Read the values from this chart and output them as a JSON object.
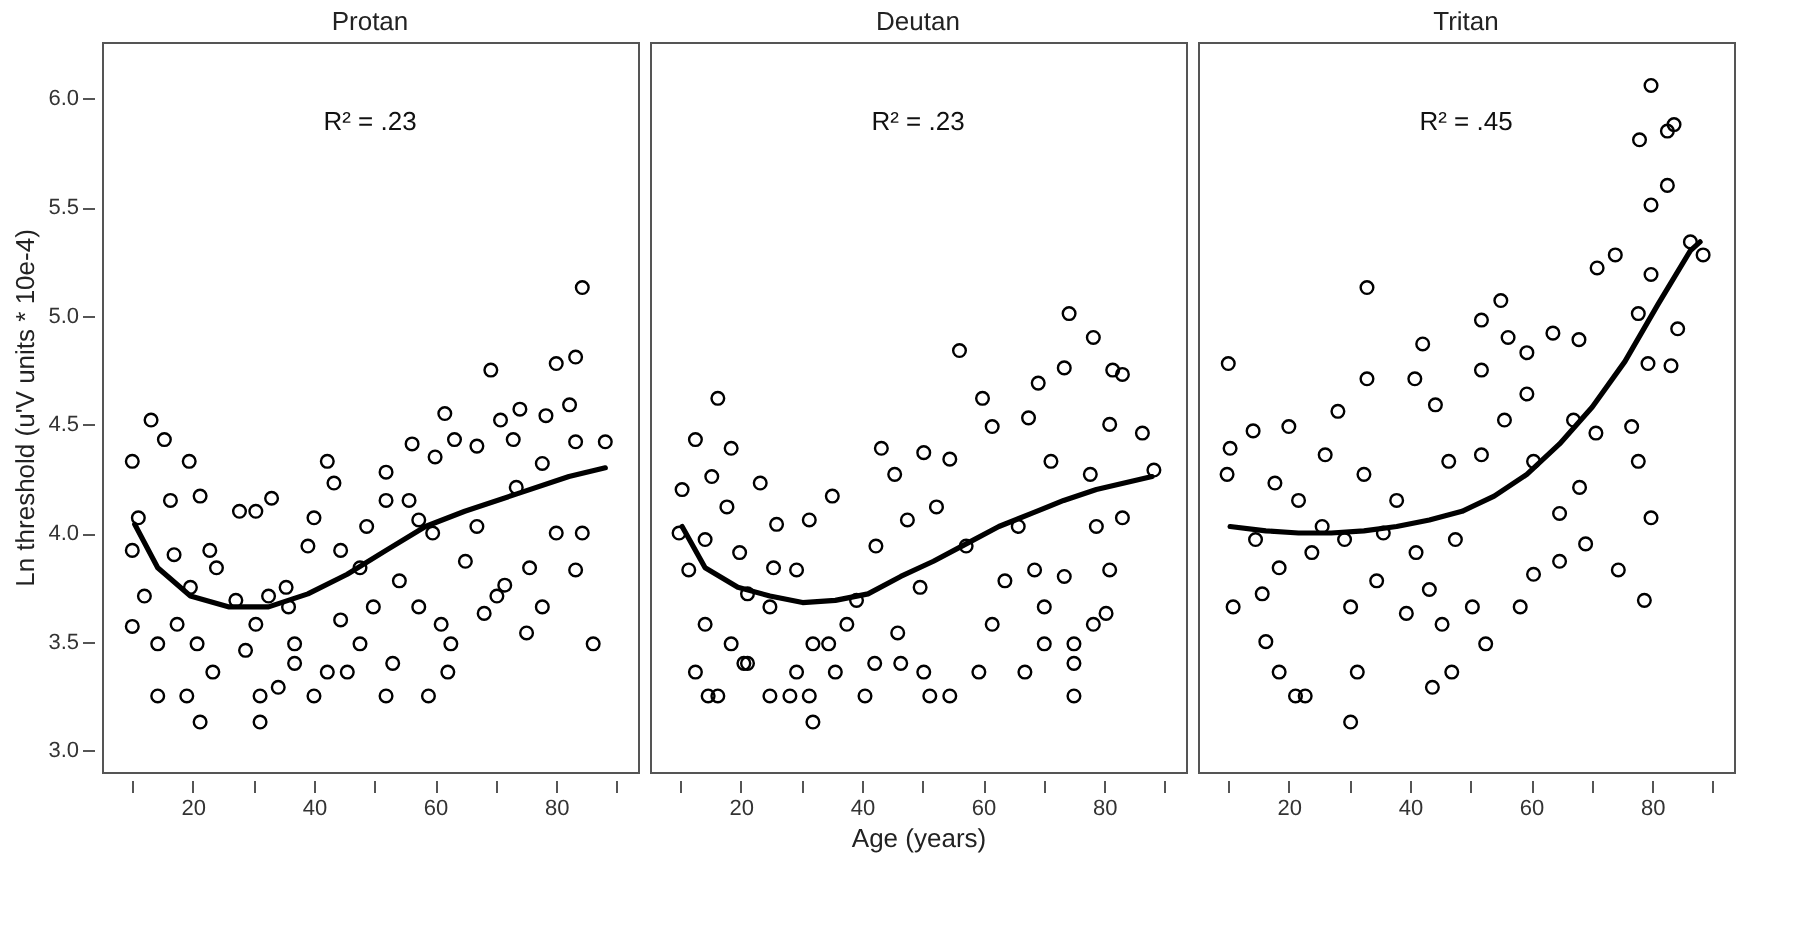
{
  "chart_data": [
    {
      "type": "scatter",
      "title": "Protan",
      "ylabel": "Ln threshold (u'V units * 10e-4)",
      "annotations": [
        "R² = .23"
      ],
      "xlim": [
        5,
        93.5
      ],
      "ylim": [
        2.9,
        6.26
      ],
      "xticks": [
        {
          "value": 10,
          "label": null
        },
        20,
        {
          "value": 30,
          "label": null
        },
        40,
        {
          "value": 50,
          "label": null
        },
        60,
        {
          "value": 70,
          "label": null
        },
        80,
        {
          "value": 90,
          "label": null
        }
      ],
      "yticks": [
        {
          "value": 3,
          "label": "3.0"
        },
        3.5,
        {
          "value": 4,
          "label": "4.0"
        },
        4.5,
        {
          "value": 5,
          "label": "5.0"
        },
        5.5,
        {
          "value": 6,
          "label": "6.0"
        }
      ],
      "series": [
        {
          "type": "scatter",
          "marker": "circle",
          "color": "#000000",
          "x": [
            10,
            10,
            10,
            13.1,
            15.3,
            19.4,
            21.2,
            16.3,
            14.2,
            19,
            21.2,
            23.3,
            11,
            12,
            14.2,
            17.4,
            20.7,
            22.8,
            27.7,
            30.4,
            33,
            28.7,
            31.1,
            31.1,
            34.1,
            30.4,
            32.5,
            36.8,
            36.8,
            40,
            40,
            42.2,
            43.3,
            42.2,
            45.5,
            44.4,
            47.6,
            48.7,
            51.9,
            53,
            51.9,
            51.9,
            56.2,
            55.7,
            58.9,
            57.3,
            60,
            61.6,
            62.1,
            62.6,
            61,
            63.2,
            66.9,
            69.2,
            70.8,
            68.1,
            70.2,
            74,
            72.9,
            78.3,
            77.7,
            75.1,
            77.7,
            80,
            83.2,
            84.3,
            82.2,
            83.2,
            84.3,
            83.2,
            88.1,
            86.1,
            80,
            71.5,
            65,
            59.6,
            54.1,
            47.6,
            39,
            35.8,
            27.1,
            19.6,
            16.9,
            23.9,
            44.4,
            66.9,
            73.4,
            75.6,
            57.3,
            49.8,
            35.4
          ],
          "values": [
            4.33,
            3.57,
            3.92,
            4.52,
            4.43,
            4.33,
            4.17,
            4.15,
            3.25,
            3.25,
            3.13,
            3.36,
            4.07,
            3.71,
            3.49,
            3.58,
            3.49,
            3.92,
            4.1,
            4.1,
            4.16,
            3.46,
            3.13,
            3.25,
            3.29,
            3.58,
            3.71,
            3.49,
            3.4,
            3.25,
            4.07,
            4.33,
            4.23,
            3.36,
            3.36,
            3.92,
            3.49,
            4.03,
            3.25,
            3.4,
            4.28,
            4.15,
            4.41,
            4.15,
            3.25,
            3.66,
            4.35,
            4.55,
            3.36,
            3.49,
            3.58,
            4.43,
            4.4,
            4.75,
            4.52,
            3.63,
            3.71,
            4.57,
            4.43,
            4.54,
            4.32,
            3.54,
            3.66,
            4.78,
            4.81,
            5.13,
            4.59,
            4.42,
            4,
            3.83,
            4.42,
            3.49,
            4,
            3.76,
            3.87,
            4,
            3.78,
            3.84,
            3.94,
            3.66,
            3.69,
            3.75,
            3.9,
            3.84,
            3.6,
            4.03,
            4.21,
            3.84,
            4.06,
            3.66,
            3.75
          ]
        },
        {
          "type": "line",
          "marker": "none",
          "color": "#000000",
          "x": [
            10.4,
            14.2,
            19.6,
            26,
            32.5,
            39,
            45.5,
            51.9,
            58.4,
            64.9,
            73.5,
            82.1,
            88.1
          ],
          "values": [
            4.04,
            3.84,
            3.71,
            3.66,
            3.66,
            3.72,
            3.81,
            3.92,
            4.03,
            4.1,
            4.18,
            4.26,
            4.3
          ]
        }
      ]
    },
    {
      "type": "scatter",
      "title": "Deutan",
      "xlabel": "Age (years)",
      "annotations": [
        "R² = .23"
      ],
      "tick_labels": "x",
      "xlim": [
        5,
        93.5
      ],
      "ylim": [
        2.9,
        6.26
      ],
      "xticks": [
        {
          "value": 10,
          "label": null
        },
        20,
        {
          "value": 30,
          "label": null
        },
        40,
        {
          "value": 50,
          "label": null
        },
        60,
        {
          "value": 70,
          "label": null
        },
        80,
        {
          "value": 90,
          "label": null
        }
      ],
      "series": [
        {
          "type": "scatter",
          "marker": "circle",
          "color": "#000000",
          "x": [
            10.3,
            9.8,
            12.5,
            16.2,
            18.4,
            15.2,
            23.2,
            11.4,
            14.1,
            12.5,
            14.6,
            16.2,
            18.4,
            21.1,
            24.8,
            28.1,
            31.9,
            31.3,
            31.9,
            29.2,
            35.6,
            34.5,
            31.3,
            25.9,
            25.4,
            29.2,
            35.1,
            40.5,
            42.1,
            43.2,
            45.4,
            46.4,
            50.2,
            51.2,
            54.5,
            56.1,
            50.2,
            54.5,
            59.9,
            61.5,
            59.3,
            61.5,
            66.9,
            67.5,
            69.1,
            73.4,
            74.2,
            78.2,
            81.4,
            83,
            86.3,
            88.2,
            80.9,
            75,
            75,
            75,
            78.2,
            80.3,
            80.9,
            83,
            70.1,
            70.1,
            68.5,
            73.4,
            71.2,
            77.7,
            63.6,
            57.2,
            52.3,
            49.6,
            47.5,
            42.3,
            39.1,
            37.5,
            24.8,
            21.1,
            19.8,
            17.7,
            14.1,
            20.5,
            45.9,
            65.8,
            78.7
          ],
          "values": [
            4.2,
            4,
            4.43,
            4.62,
            4.39,
            4.26,
            4.23,
            3.83,
            3.58,
            3.36,
            3.25,
            3.25,
            3.49,
            3.4,
            3.25,
            3.25,
            3.13,
            3.25,
            3.49,
            3.36,
            3.36,
            3.49,
            4.06,
            4.04,
            3.84,
            3.83,
            4.17,
            3.25,
            3.4,
            4.39,
            4.27,
            3.4,
            3.36,
            3.25,
            3.25,
            4.84,
            4.37,
            4.34,
            4.62,
            4.49,
            3.36,
            3.58,
            3.36,
            4.53,
            4.69,
            4.76,
            5.01,
            4.9,
            4.75,
            4.73,
            4.46,
            4.29,
            4.5,
            3.25,
            3.4,
            3.49,
            3.58,
            3.63,
            3.83,
            4.07,
            3.49,
            3.66,
            3.83,
            3.8,
            4.33,
            4.27,
            3.78,
            3.94,
            4.12,
            3.75,
            4.06,
            3.94,
            3.69,
            3.58,
            3.66,
            3.72,
            3.91,
            4.12,
            3.97,
            3.4,
            3.54,
            4.03,
            4.03
          ]
        },
        {
          "type": "line",
          "marker": "none",
          "color": "#000000",
          "x": [
            10.3,
            14.1,
            19.5,
            24.8,
            30.2,
            35.6,
            41,
            46.4,
            51.8,
            57.2,
            62.6,
            68,
            73.3,
            78.7,
            87.9
          ],
          "values": [
            4.03,
            3.84,
            3.75,
            3.71,
            3.68,
            3.69,
            3.72,
            3.8,
            3.87,
            3.95,
            4.03,
            4.09,
            4.15,
            4.2,
            4.26
          ]
        }
      ]
    },
    {
      "type": "scatter",
      "title": "Tritan",
      "annotations": [
        "R² = .45"
      ],
      "tick_labels": "x",
      "xlim": [
        5,
        93.5
      ],
      "ylim": [
        2.9,
        6.26
      ],
      "xticks": [
        {
          "value": 10,
          "label": null
        },
        20,
        {
          "value": 30,
          "label": null
        },
        40,
        {
          "value": 50,
          "label": null
        },
        60,
        {
          "value": 70,
          "label": null
        },
        80,
        {
          "value": 90,
          "label": null
        }
      ],
      "series": [
        {
          "type": "scatter",
          "marker": "circle",
          "color": "#000000",
          "x": [
            10,
            10.3,
            9.8,
            10.8,
            14.1,
            20,
            16.2,
            18.4,
            21.1,
            22.7,
            30.2,
            31.3,
            30.2,
            34.5,
            32.9,
            32.9,
            28.1,
            26,
            42.1,
            40.8,
            44.2,
            43.7,
            46.9,
            45.3,
            39.4,
            43.2,
            51.8,
            51.8,
            55,
            56.2,
            52.5,
            50.3,
            58.2,
            59.3,
            59.3,
            63.6,
            67.9,
            70.9,
            73.9,
            79.8,
            77.9,
            82.5,
            83.6,
            82.5,
            79.8,
            86.3,
            88.4,
            79.8,
            77.7,
            84.2,
            83.1,
            79.3,
            78.7,
            79.8,
            74.4,
            76.6,
            77.7,
            69,
            64.7,
            60.4,
            68,
            70.7,
            67,
            55.6,
            51.8,
            46.4,
            47.5,
            41,
            37.8,
            32.4,
            25.5,
            21.6,
            17.7,
            14.5,
            15.6,
            18.4,
            23.8,
            29.2,
            35.6,
            60.4,
            64.7
          ],
          "values": [
            4.78,
            4.39,
            4.27,
            3.66,
            4.47,
            4.49,
            3.5,
            3.36,
            3.25,
            3.25,
            3.13,
            3.36,
            3.66,
            3.78,
            5.13,
            4.71,
            4.56,
            4.36,
            4.87,
            4.71,
            4.59,
            3.29,
            3.36,
            3.58,
            3.63,
            3.74,
            4.75,
            4.98,
            5.07,
            4.9,
            3.49,
            3.66,
            3.66,
            4.83,
            4.64,
            4.92,
            4.89,
            5.22,
            5.28,
            6.06,
            5.81,
            5.85,
            5.88,
            5.6,
            5.51,
            5.34,
            5.28,
            5.19,
            5.01,
            4.94,
            4.77,
            4.78,
            3.69,
            4.07,
            3.83,
            4.49,
            4.33,
            3.95,
            3.87,
            3.81,
            4.21,
            4.46,
            4.52,
            4.52,
            4.36,
            4.33,
            3.97,
            3.91,
            4.15,
            4.27,
            4.03,
            4.15,
            4.23,
            3.97,
            3.72,
            3.84,
            3.91,
            3.97,
            4,
            4.33,
            4.09
          ]
        },
        {
          "type": "line",
          "marker": "none",
          "color": "#000000",
          "x": [
            10.3,
            16.2,
            21.6,
            27,
            32.4,
            37.8,
            43.2,
            48.6,
            53.9,
            59.3,
            64.7,
            70.1,
            75.5,
            80.9,
            86.3,
            87.9
          ],
          "values": [
            4.03,
            4.01,
            4,
            4,
            4.01,
            4.03,
            4.06,
            4.1,
            4.17,
            4.27,
            4.41,
            4.58,
            4.79,
            5.05,
            5.3,
            5.34
          ]
        }
      ]
    }
  ]
}
